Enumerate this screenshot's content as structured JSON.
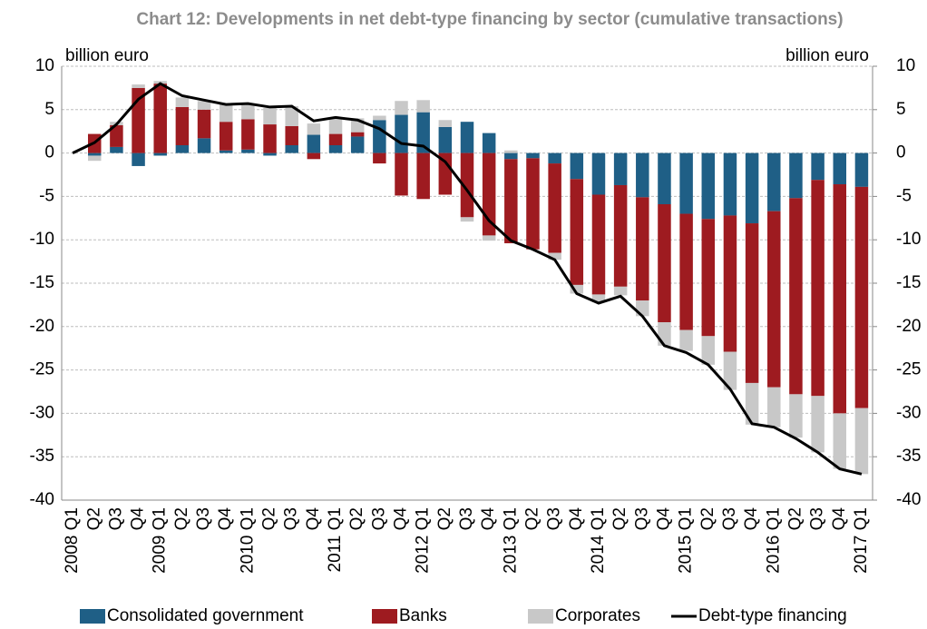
{
  "chart_data": {
    "type": "bar",
    "title": "Chart 12: Developments in net debt-type financing by sector (cumulative transactions)",
    "ylabel": "billion euro",
    "y2label": "billion euro",
    "stacked": true,
    "grid": true,
    "categories": [
      "2008 Q1",
      "Q2",
      "Q3",
      "Q4",
      "2009 Q1",
      "Q2",
      "Q3",
      "Q4",
      "2010 Q1",
      "Q2",
      "Q3",
      "Q4",
      "2011 Q1",
      "Q2",
      "Q3",
      "Q4",
      "2012 Q1",
      "Q2",
      "Q3",
      "Q4",
      "2013 Q1",
      "Q2",
      "Q3",
      "Q4",
      "2014 Q1",
      "Q2",
      "Q3",
      "Q4",
      "2015 Q1",
      "Q2",
      "Q3",
      "Q4",
      "2016 Q1",
      "Q2",
      "Q3",
      "Q4",
      "2017 Q1"
    ],
    "series": [
      {
        "name": "Consolidated government",
        "color": "#1f5f86",
        "values": [
          0,
          -0.3,
          0.7,
          -1.5,
          -0.3,
          0.9,
          1.7,
          0.3,
          0.4,
          -0.3,
          0.9,
          2.1,
          0.9,
          1.9,
          3.8,
          4.4,
          4.7,
          3.0,
          3.6,
          2.3,
          -0.7,
          -0.6,
          -1.2,
          -3.0,
          -4.8,
          -3.7,
          -5.1,
          -5.9,
          -7.0,
          -7.6,
          -7.2,
          -8.1,
          -6.7,
          -5.2,
          -3.1,
          -3.6,
          -3.9
        ]
      },
      {
        "name": "Banks",
        "color": "#9e1b20",
        "values": [
          0,
          2.2,
          2.5,
          7.5,
          8.0,
          4.4,
          3.3,
          3.3,
          3.5,
          3.3,
          2.2,
          -0.7,
          1.3,
          0.5,
          -1.2,
          -4.9,
          -5.3,
          -4.8,
          -7.4,
          -9.5,
          -9.7,
          -10.5,
          -10.3,
          -12.2,
          -11.5,
          -11.7,
          -11.9,
          -13.6,
          -13.4,
          -13.5,
          -15.7,
          -18.4,
          -20.3,
          -22.6,
          -24.9,
          -26.4,
          -25.5
        ]
      },
      {
        "name": "Corporates",
        "color": "#c8c8c8",
        "values": [
          0,
          -0.6,
          0.4,
          0.4,
          0.3,
          1.1,
          1.0,
          2.1,
          1.8,
          1.9,
          2.3,
          1.3,
          1.9,
          1.6,
          0.5,
          1.6,
          1.4,
          0.8,
          -0.5,
          -0.6,
          0.3,
          0,
          -0.8,
          -1.0,
          -0.9,
          -1.0,
          -1.8,
          -2.7,
          -2.4,
          -3.3,
          -4.4,
          -4.8,
          -4.6,
          -5.0,
          -6.5,
          -6.4,
          -7.6
        ]
      },
      {
        "name": "Debt-type financing",
        "type": "line",
        "color": "#000000",
        "values": [
          0,
          1.2,
          3.3,
          6.2,
          8.0,
          6.6,
          6.1,
          5.6,
          5.7,
          5.3,
          5.4,
          3.7,
          4.1,
          3.8,
          2.8,
          1.1,
          0.8,
          -1.0,
          -4.3,
          -7.8,
          -10.1,
          -11.1,
          -12.3,
          -16.2,
          -17.3,
          -16.5,
          -18.8,
          -22.2,
          -23.0,
          -24.4,
          -27.2,
          -31.2,
          -31.6,
          -32.9,
          -34.5,
          -36.4,
          -37.0
        ]
      }
    ],
    "ylim": [
      -40,
      10
    ],
    "yticks": [
      -40,
      -35,
      -30,
      -25,
      -20,
      -15,
      -10,
      -5,
      0,
      5,
      10
    ],
    "y2lim": [
      -40,
      10
    ],
    "y2ticks": [
      -40,
      -35,
      -30,
      -25,
      -20,
      -15,
      -10,
      -5,
      0,
      5,
      10
    ]
  }
}
